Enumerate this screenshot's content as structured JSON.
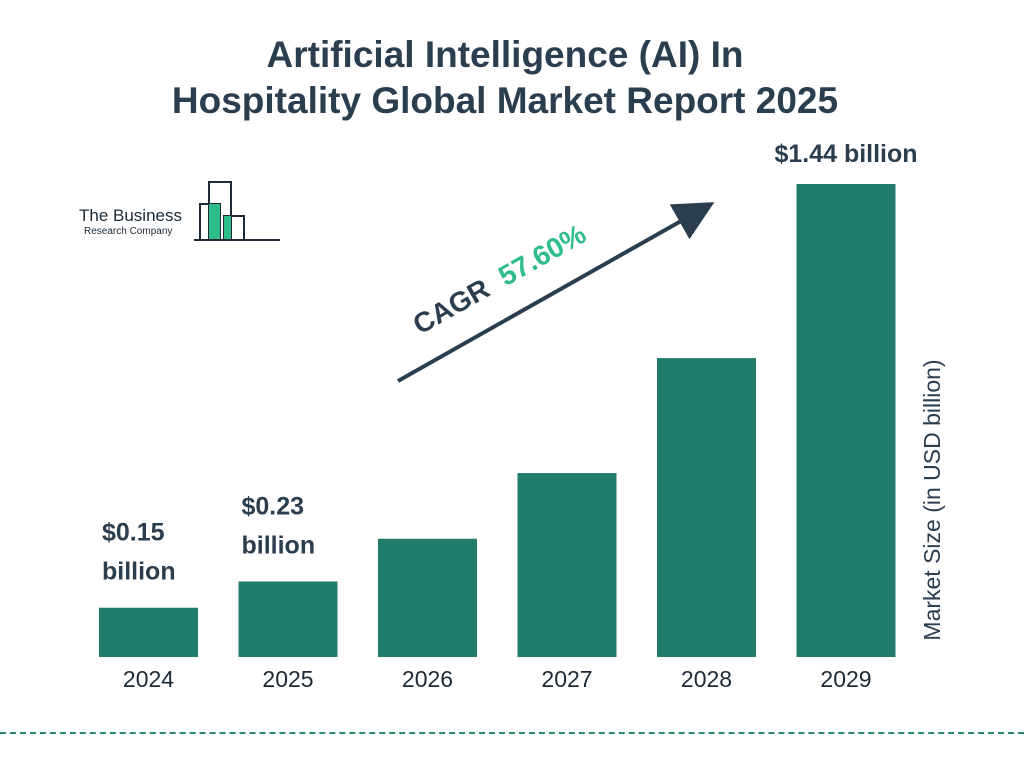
{
  "title": {
    "line1": "Artificial Intelligence (AI) In",
    "line2": "Hospitality Global Market Report 2025"
  },
  "logo": {
    "line1": "The Business",
    "line2": "Research Company"
  },
  "cagr": {
    "label": "CAGR",
    "value": "57.60%"
  },
  "colors": {
    "bar": "#217c6c",
    "title": "#2b3e50",
    "cagr_value": "#2ebd8a",
    "text": "#1d2a36",
    "dash": "#2a8b7d"
  },
  "chart_data": {
    "type": "bar",
    "categories": [
      "2024",
      "2025",
      "2026",
      "2027",
      "2028",
      "2029"
    ],
    "values": [
      0.15,
      0.23,
      0.36,
      0.56,
      0.91,
      1.44
    ],
    "data_labels": [
      "$0.15 billion",
      "$0.23 billion",
      "",
      "",
      "",
      "$1.44 billion"
    ],
    "ylabel": "Market Size (in USD billion)",
    "grid": false,
    "legend": "none"
  }
}
